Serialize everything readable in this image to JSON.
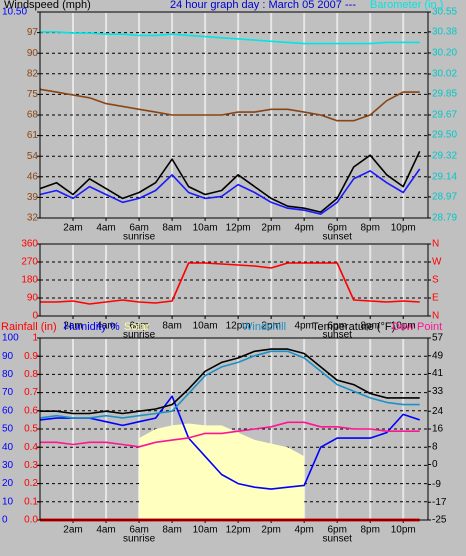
{
  "chart_data": [
    {
      "type": "line",
      "title": "24 hour graph day : March 05 2007",
      "title_suffix": "---",
      "x": [
        0,
        1,
        2,
        3,
        4,
        5,
        6,
        7,
        8,
        9,
        10,
        11,
        12,
        13,
        14,
        15,
        16,
        17,
        18,
        19,
        20,
        21,
        22,
        23
      ],
      "xlim": [
        0,
        23.5
      ],
      "xticks": [
        {
          "value": 2,
          "label": "2am"
        },
        {
          "value": 4,
          "label": "4am"
        },
        {
          "value": 6,
          "label": "6am"
        },
        {
          "value": 8,
          "label": "8am"
        },
        {
          "value": 10,
          "label": "10am"
        },
        {
          "value": 12,
          "label": "12pm"
        },
        {
          "value": 14,
          "label": "2pm"
        },
        {
          "value": 16,
          "label": "4pm"
        },
        {
          "value": 18,
          "label": "6pm"
        },
        {
          "value": 20,
          "label": "8pm"
        },
        {
          "value": 22,
          "label": "10pm"
        }
      ],
      "annotations": [
        {
          "x": 6,
          "text": "sunrise"
        },
        {
          "x": 18,
          "text": "sunset"
        }
      ],
      "ylim": [
        32,
        104
      ],
      "yticks": [
        32,
        {
          "value": 39.2,
          "label": "39"
        },
        {
          "value": 46.4,
          "label": "46"
        },
        {
          "value": 53.6,
          "label": "54"
        },
        {
          "value": 60.8,
          "label": "61"
        },
        68,
        {
          "value": 75.2,
          "label": "75"
        },
        {
          "value": 82.4,
          "label": "82"
        },
        {
          "value": 89.6,
          "label": "90"
        },
        {
          "value": 96.8,
          "label": "97"
        }
      ],
      "y2lim": [
        28.79,
        30.55
      ],
      "y2ticks": [
        28.79,
        28.97,
        29.14,
        29.32,
        {
          "value": 29.5,
          "label": "29.50"
        },
        29.67,
        29.85,
        30.02,
        {
          "value": 30.2,
          "label": "30.20"
        },
        30.38,
        30.55
      ],
      "y3lim": [
        0,
        10.5
      ],
      "y3ticks": [
        {
          "value": 10.5,
          "label": "10.50"
        }
      ],
      "grid": true,
      "series": [
        {
          "name": "Windspeed (mph)",
          "color": "#000000",
          "axis": "y3",
          "values": [
            1.5,
            1.8,
            1.2,
            2.0,
            1.5,
            1.0,
            1.3,
            1.8,
            3.0,
            1.6,
            1.2,
            1.4,
            2.2,
            1.6,
            1.0,
            0.6,
            0.5,
            0.3,
            1.0,
            2.6,
            3.2,
            2.2,
            1.6,
            3.4
          ]
        },
        {
          "color": "#1a1aff",
          "axis": "y3",
          "values": [
            1.2,
            1.4,
            1.0,
            1.6,
            1.2,
            0.8,
            1.0,
            1.4,
            2.2,
            1.3,
            1.0,
            1.1,
            1.7,
            1.3,
            0.8,
            0.5,
            0.4,
            0.2,
            0.8,
            2.0,
            2.4,
            1.8,
            1.3,
            2.5
          ]
        },
        {
          "name": "Barometer (in.)",
          "color": "#00e5e5",
          "axis": "y2",
          "values": [
            30.38,
            30.38,
            30.37,
            30.37,
            30.36,
            30.36,
            30.35,
            30.35,
            30.36,
            30.35,
            30.34,
            30.33,
            30.32,
            30.31,
            30.3,
            30.29,
            30.28,
            30.28,
            30.28,
            30.28,
            30.28,
            30.29,
            30.29,
            30.29
          ]
        },
        {
          "color": "#8b4513",
          "values": [
            77,
            76,
            75,
            74,
            72,
            71,
            70,
            69,
            68,
            68,
            68,
            68,
            69,
            69,
            70,
            70,
            69,
            68,
            66,
            66,
            68,
            73,
            76,
            76
          ]
        }
      ]
    },
    {
      "type": "line",
      "x": [
        0,
        1,
        2,
        3,
        4,
        5,
        6,
        7,
        8,
        9,
        10,
        11,
        12,
        13,
        14,
        15,
        16,
        17,
        18,
        19,
        20,
        21,
        22,
        23
      ],
      "xlim": [
        0,
        23.5
      ],
      "xticks": [
        {
          "value": 2,
          "label": "2am"
        },
        {
          "value": 4,
          "label": "4am"
        },
        {
          "value": 6,
          "label": "6am"
        },
        {
          "value": 8,
          "label": "8am"
        },
        {
          "value": 10,
          "label": "10am"
        },
        {
          "value": 12,
          "label": "12pm"
        },
        {
          "value": 14,
          "label": "2pm"
        },
        {
          "value": 16,
          "label": "4pm"
        },
        {
          "value": 18,
          "label": "6pm"
        },
        {
          "value": 20,
          "label": "8pm"
        },
        {
          "value": 22,
          "label": "10pm"
        }
      ],
      "annotations": [
        {
          "x": 6,
          "text": "sunrise"
        },
        {
          "x": 18,
          "text": "sunset"
        }
      ],
      "ylim": [
        0,
        360
      ],
      "yticks": [
        0,
        90,
        180,
        270,
        360
      ],
      "y2lim": [
        0,
        360
      ],
      "y2ticks": [
        {
          "value": 0,
          "label": "N"
        },
        {
          "value": 90,
          "label": "E"
        },
        {
          "value": 180,
          "label": "S"
        },
        {
          "value": 270,
          "label": "W"
        },
        {
          "value": 360,
          "label": "N"
        }
      ],
      "grid": true,
      "series": [
        {
          "color": "#ff0000",
          "values": [
            70,
            70,
            75,
            60,
            70,
            80,
            70,
            65,
            75,
            265,
            265,
            260,
            255,
            250,
            240,
            265,
            265,
            265,
            265,
            80,
            75,
            70,
            75,
            70
          ]
        }
      ]
    },
    {
      "type": "line",
      "x": [
        0,
        1,
        2,
        3,
        4,
        5,
        6,
        7,
        8,
        9,
        10,
        11,
        12,
        13,
        14,
        15,
        16,
        17,
        18,
        19,
        20,
        21,
        22,
        23
      ],
      "xlim": [
        0,
        23.5
      ],
      "xticks": [
        {
          "value": 2,
          "label": "2am"
        },
        {
          "value": 4,
          "label": "4am"
        },
        {
          "value": 6,
          "label": "6am"
        },
        {
          "value": 8,
          "label": "8am"
        },
        {
          "value": 10,
          "label": "10am"
        },
        {
          "value": 12,
          "label": "12pm"
        },
        {
          "value": 14,
          "label": "2pm"
        },
        {
          "value": 16,
          "label": "4pm"
        },
        {
          "value": 18,
          "label": "6pm"
        },
        {
          "value": 20,
          "label": "8pm"
        },
        {
          "value": 22,
          "label": "10pm"
        }
      ],
      "annotations": [
        {
          "x": 6,
          "text": "sunrise"
        },
        {
          "x": 18,
          "text": "sunset"
        }
      ],
      "ylim": [
        0,
        100
      ],
      "yticks": [
        0,
        10,
        20,
        30,
        40,
        50,
        60,
        70,
        80,
        90,
        100
      ],
      "y2lim": [
        -25,
        57
      ],
      "y2ticks": [
        -25,
        -17,
        -9,
        0,
        8,
        16,
        24,
        33,
        41,
        49,
        57
      ],
      "y3lim": [
        0,
        1
      ],
      "y3ticks": [
        {
          "value": 0,
          "label": "0.0"
        },
        0.1,
        0.2,
        0.3,
        0.4,
        0.5,
        0.6,
        0.7,
        0.8,
        0.9,
        1
      ],
      "grid": true,
      "series": [
        {
          "name": "Solar",
          "color": "#ffffc0",
          "area": true,
          "values": [
            null,
            null,
            null,
            null,
            null,
            null,
            45,
            50,
            52,
            53,
            52,
            52,
            48,
            44,
            42,
            40,
            35,
            null,
            null,
            null,
            null,
            null,
            null,
            null
          ]
        },
        {
          "name": "Rainfall (in)",
          "color": "#ff0000",
          "axis": "y3",
          "values": [
            0,
            0,
            0,
            0,
            0,
            0,
            0,
            0,
            0,
            0,
            0,
            0,
            0,
            0,
            0,
            0,
            0,
            0,
            0,
            0,
            0,
            0,
            0,
            0
          ]
        },
        {
          "name": "Humidity %",
          "color": "#0000ff",
          "values": [
            55,
            56,
            56,
            56,
            54,
            52,
            54,
            56,
            68,
            45,
            35,
            25,
            20,
            18,
            17,
            18,
            19,
            40,
            45,
            45,
            45,
            48,
            58,
            55
          ]
        },
        {
          "name": "Dew Point",
          "color": "#ff1493",
          "axis": "y2",
          "values": [
            10,
            10,
            9,
            10,
            10,
            9,
            8,
            10,
            11,
            12,
            14,
            14,
            15,
            16,
            17,
            19,
            19,
            17,
            17,
            16,
            16,
            15,
            15,
            15
          ]
        },
        {
          "name": "Windchill",
          "color": "#1e90c8",
          "axis": "y2",
          "values": [
            21,
            22,
            21,
            21,
            22,
            21,
            22,
            23,
            24,
            32,
            40,
            44,
            46,
            49,
            51,
            51,
            48,
            42,
            36,
            33,
            30,
            28,
            27,
            27
          ]
        },
        {
          "name": "Temperature (°F)",
          "color": "#000000",
          "axis": "y2",
          "values": [
            24,
            24,
            23,
            23,
            24,
            23,
            24,
            25,
            27,
            34,
            42,
            46,
            48,
            51,
            52,
            52,
            50,
            44,
            38,
            36,
            32,
            30,
            30,
            30
          ]
        }
      ]
    }
  ]
}
